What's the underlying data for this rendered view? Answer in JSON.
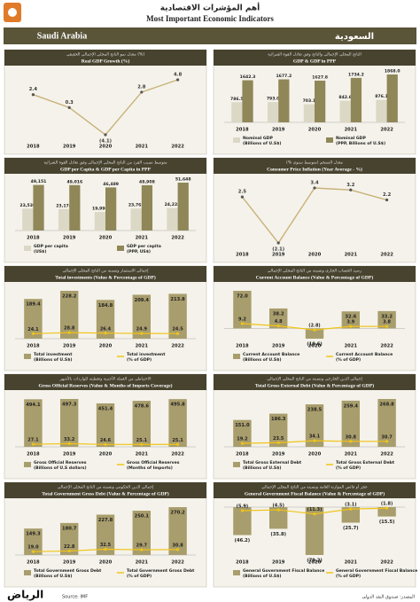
{
  "page": {
    "title_ar": "أهم المؤشرات الاقتصادية",
    "title_en": "Most Important Economic Indicators",
    "country_en": "Saudi Arabia",
    "country_ar": "السعودية",
    "source_en": "Source: IMF",
    "source_ar": "المصدر: صندوق النقد الدولي",
    "logo": "الرياض"
  },
  "chart_data": [
    {
      "type": "line",
      "subtitle": "معدل نمو الناتج المحلي الإجمالي الحقيقي (%)",
      "title": "Real GDP Growth (%)",
      "categories": [
        "2018",
        "2019",
        "2020",
        "2021",
        "2022"
      ],
      "values": [
        2.4,
        0.3,
        -4.1,
        2.8,
        4.8
      ],
      "value_labels": [
        "2.4",
        "0.3",
        "(4.1)",
        "2.8",
        "4.8"
      ],
      "color": "#c9b27a"
    },
    {
      "type": "bar",
      "subtitle": "الناتج المحلي الإجمالي والناتج وفق تعادل القوة الشرائية",
      "title": "GDP & GDP in PPP",
      "categories": [
        "2018",
        "2019",
        "2020",
        "2021",
        "2022"
      ],
      "series": [
        {
          "name": "Nominal GDP (Billions of U.S$)",
          "type": "bar",
          "color": "#dcd8c6",
          "values": [
            786.5,
            793.0,
            703.1,
            842.6,
            876.1
          ],
          "value_labels": [
            "786.5",
            "793.0",
            "703.1",
            "842.6",
            "876.1"
          ]
        },
        {
          "name": "Nominal GDP (PPP, Billions of U.S$)",
          "type": "bar",
          "color": "#8f8758",
          "values": [
            1642.3,
            1677.2,
            1627.8,
            1734.2,
            1868.0
          ],
          "value_labels": [
            "1642.3",
            "1677.2",
            "1627.8",
            "1734.2",
            "1868.0"
          ]
        }
      ]
    },
    {
      "type": "bar",
      "subtitle": "متوسط نصيب الفرد من الناتج المحلي الإجمالي وفق تعادل القوة الشرائية",
      "title": "GDP per Capita & GDP per Capita in PPP",
      "categories": [
        "2018",
        "2019",
        "2020",
        "2021",
        "2022"
      ],
      "series": [
        {
          "name": "GDP per capita (US$)",
          "type": "bar",
          "color": "#dcd8c6",
          "values": [
            23539,
            23174,
            19996,
            23762,
            24224
          ],
          "value_labels": [
            "23,539",
            "23,174",
            "19,996",
            "23,762",
            "24,224"
          ]
        },
        {
          "name": "GDP per capita (PPP, US$)",
          "type": "bar",
          "color": "#8f8758",
          "values": [
            49151,
            49016,
            46489,
            48908,
            51648
          ],
          "value_labels": [
            "49,151",
            "49,016",
            "46,489",
            "48,908",
            "51,648"
          ]
        }
      ]
    },
    {
      "type": "line",
      "subtitle": "معدل التضخم (متوسط سنوي %)",
      "title": "Consumer Price Inflation (Year Average - %)",
      "categories": [
        "2018",
        "2019",
        "2020",
        "2021",
        "2022"
      ],
      "values": [
        2.5,
        -2.1,
        3.4,
        3.2,
        2.2
      ],
      "value_labels": [
        "2.5",
        "(2.1)",
        "3.4",
        "3.2",
        "2.2"
      ],
      "color": "#c9b27a"
    },
    {
      "type": "bar",
      "subtitle": "إجمالي الاستثمار ونسبته من الناتج المحلي الإجمالي",
      "title": "Total investments (Value & Percentage of GDP)",
      "categories": [
        "2018",
        "2019",
        "2020",
        "2021",
        "2022"
      ],
      "series": [
        {
          "name": "Total investment (Billions of U.S$)",
          "type": "bar",
          "color": "#a89d6c",
          "values": [
            189.4,
            228.2,
            184.8,
            209.4,
            213.8
          ],
          "value_labels": [
            "189.4",
            "228.2",
            "184.8",
            "209.4",
            "213.8"
          ]
        },
        {
          "name": "Total investment (% of GDP)",
          "type": "line",
          "color": "#f0c419",
          "values": [
            24.1,
            28.8,
            26.4,
            24.9,
            24.5
          ],
          "value_labels": [
            "24.1",
            "28.8",
            "26.4",
            "24.9",
            "24.5"
          ]
        }
      ]
    },
    {
      "type": "bar",
      "subtitle": "رصيد الحساب الجاري ونسبته من الناتج المحلي الإجمالي",
      "title": "Current Account Balance (Value & Percentage of GDP)",
      "categories": [
        "2018",
        "2019",
        "2020",
        "2021",
        "2022"
      ],
      "series": [
        {
          "name": "Current Account Balance (Billions of U.S$)",
          "type": "bar",
          "color": "#a89d6c",
          "values": [
            72.0,
            38.2,
            -19.6,
            32.6,
            33.2
          ],
          "value_labels": [
            "72.0",
            "38.2",
            "(19.6)",
            "32.6",
            "33.2"
          ]
        },
        {
          "name": "Current Account Balance (% of GDP)",
          "type": "line",
          "color": "#f0c419",
          "values": [
            9.2,
            4.8,
            -2.8,
            3.9,
            3.8
          ],
          "value_labels": [
            "9.2",
            "4.8",
            "(2.8)",
            "3.9",
            "3.8"
          ]
        }
      ]
    },
    {
      "type": "bar",
      "subtitle": "الاحتياطي من العملة الأجنبية وتغطيته للواردات بالأشهر",
      "title": "Gross Official Reserves (Value & Months of Imports Coverage)",
      "categories": [
        "2018",
        "2019",
        "2020",
        "2021",
        "2022"
      ],
      "series": [
        {
          "name": "Gross Official Reserves (Billions of U.S dollars)",
          "type": "bar",
          "color": "#a89d6c",
          "values": [
            494.1,
            497.3,
            451.4,
            478.6,
            495.8
          ],
          "value_labels": [
            "494.1",
            "497.3",
            "451.4",
            "478.6",
            "495.8"
          ]
        },
        {
          "name": "Gross Official Reserves (Months of Imports)",
          "type": "line",
          "color": "#f0c419",
          "values": [
            27.1,
            33.2,
            24.6,
            25.1,
            25.1
          ],
          "value_labels": [
            "27.1",
            "33.2",
            "24.6",
            "25.1",
            "25.1"
          ]
        }
      ]
    },
    {
      "type": "bar",
      "subtitle": "إجمالي الدين الخارجي ونسبته من الناتج المحلي الإجمالي",
      "title": "Total Gross External Debt (Value & Percentage of GDP)",
      "categories": [
        "2018",
        "2019",
        "2020",
        "2021",
        "2022"
      ],
      "series": [
        {
          "name": "Total Gross External Debt (Billions of U.S$)",
          "type": "bar",
          "color": "#a89d6c",
          "values": [
            151.0,
            186.3,
            238.5,
            259.4,
            268.8
          ],
          "value_labels": [
            "151.0",
            "186.3",
            "238.5",
            "259.4",
            "268.8"
          ]
        },
        {
          "name": "Total Gross External Debt (% of GDP)",
          "type": "line",
          "color": "#f0c419",
          "values": [
            19.2,
            23.5,
            34.1,
            30.8,
            30.7
          ],
          "value_labels": [
            "19.2",
            "23.5",
            "34.1",
            "30.8",
            "30.7"
          ]
        }
      ]
    },
    {
      "type": "bar",
      "subtitle": "إجمالي الدين الحكومي ونسبته من الناتج المحلي الإجمالي",
      "title": "Total Government Gross Debt (Value & Percentage of GDP)",
      "categories": [
        "2018",
        "2019",
        "2020",
        "2021",
        "2022"
      ],
      "series": [
        {
          "name": "Total Government Gross Debt (Billions of U.S$)",
          "type": "bar",
          "color": "#a89d6c",
          "values": [
            149.3,
            180.7,
            227.8,
            250.1,
            270.2
          ],
          "value_labels": [
            "149.3",
            "180.7",
            "227.8",
            "250.1",
            "270.2"
          ]
        },
        {
          "name": "Total Government Gross Debt (% of GDP)",
          "type": "line",
          "color": "#f0c419",
          "values": [
            19.0,
            22.8,
            32.5,
            29.7,
            30.8
          ],
          "value_labels": [
            "19.0",
            "22.8",
            "32.5",
            "29.7",
            "30.8"
          ]
        }
      ]
    },
    {
      "type": "bar",
      "subtitle": "عجز أو فائض الموازنة العامة ونسبته من الناتج المحلي الإجمالي",
      "title": "General Government Fiscal Balance (Value & Percentage of GDP)",
      "categories": [
        "2018",
        "2019",
        "2020",
        "2021",
        "2022"
      ],
      "series": [
        {
          "name": "General Government Fiscal Balance (Billions of U.S$)",
          "type": "bar",
          "color": "#a89d6c",
          "values": [
            -46.2,
            -35.8,
            -79.2,
            -25.7,
            -15.5
          ],
          "value_labels": [
            "(46.2)",
            "(35.8)",
            "(79.2)",
            "(25.7)",
            "(15.5)"
          ]
        },
        {
          "name": "General Government Fiscal Balance (% of GDP)",
          "type": "line",
          "color": "#f0c419",
          "values": [
            -5.9,
            -4.5,
            -11.3,
            -3.1,
            -1.8
          ],
          "value_labels": [
            "(5.9)",
            "(4.5)",
            "(11.3)",
            "(3.1)",
            "(1.8)"
          ]
        }
      ]
    }
  ]
}
